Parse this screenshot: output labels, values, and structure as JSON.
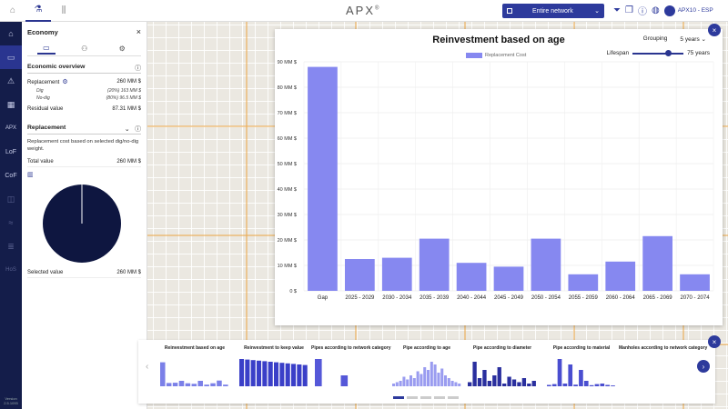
{
  "app": {
    "logo": "APX",
    "logo_sup": "®"
  },
  "topbar": {
    "network_label": "Entire network",
    "user_label": "APX10 - ESP"
  },
  "rail": {
    "items": [
      "home-icon",
      "wallet-icon",
      "warning-icon",
      "calendar-icon",
      "APX",
      "LoF",
      "CoF",
      "chart-icon",
      "waves-icon",
      "layers-icon",
      "HoS"
    ],
    "version": "Version 2.5.1093"
  },
  "panel": {
    "title": "Economy",
    "overview": {
      "title": "Economic overview",
      "replacement_label": "Replacement",
      "replacement_value": "260 MM $",
      "dig_label": "Dig",
      "dig_value": "(20%) 163 MM $",
      "nodig_label": "No-dig",
      "nodig_value": "(80%) 96.5 MM $",
      "residual_label": "Residual value",
      "residual_value": "87.31 MM $"
    },
    "replacement": {
      "title": "Replacement",
      "description": "Replacement cost based on selected dig/no-dig weight.",
      "total_label": "Total value",
      "total_value": "260 MM $",
      "selected_label": "Selected value",
      "selected_value": "260 MM $"
    }
  },
  "chart_panel": {
    "title": "Reinvestment based on age",
    "grouping_label": "Grouping",
    "grouping_value": "5 years",
    "lifespan_label": "Lifespan",
    "lifespan_value": "75 years",
    "lifespan_fraction": 0.7
  },
  "chart_data": {
    "type": "bar",
    "title": "Reinvestment based on age",
    "categories": [
      "Gap",
      "2025 - 2029",
      "2030 - 2034",
      "2035 - 2039",
      "2040 - 2044",
      "2045 - 2049",
      "2050 - 2054",
      "2055 - 2059",
      "2060 - 2064",
      "2065 - 2069",
      "2070 - 2074"
    ],
    "series": [
      {
        "name": "Replacement Cost",
        "values": [
          88,
          12.5,
          13,
          20.5,
          11,
          9.5,
          20.5,
          6.5,
          11.5,
          21.5,
          6.5
        ]
      }
    ],
    "ylim": [
      0,
      90
    ],
    "yticks": [
      "0 $",
      "10 MM $",
      "20 MM $",
      "30 MM $",
      "40 MM $",
      "50 MM $",
      "60 MM $",
      "70 MM $",
      "80 MM $",
      "90 MM $"
    ],
    "grid": true,
    "legend": "top-left",
    "color": "#8688f0"
  },
  "carousel": {
    "thumbs": [
      "Reinvestment based on age",
      "Reinvestment to keep value",
      "Pipes according to network category",
      "Pipe according to age",
      "Pipe according to diameter",
      "Pipe according to material",
      "Manholes according to network category"
    ]
  }
}
